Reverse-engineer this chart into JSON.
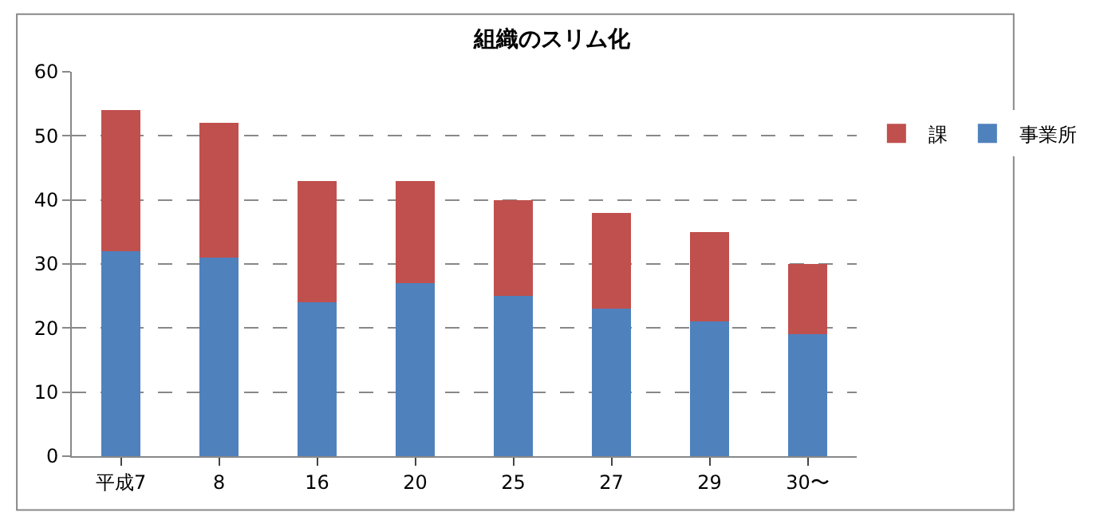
{
  "chart_data": {
    "type": "bar",
    "title": "組織のスリム化",
    "stacked": true,
    "categories": [
      "平成7",
      "8",
      "16",
      "20",
      "25",
      "27",
      "29",
      "30〜"
    ],
    "series": [
      {
        "name": "事業所",
        "color": "#4f81bd",
        "values": [
          32,
          31,
          24,
          27,
          25,
          23,
          21,
          19
        ]
      },
      {
        "name": "課",
        "color": "#c0504d",
        "values": [
          22,
          21,
          19,
          16,
          15,
          15,
          14,
          11
        ]
      }
    ],
    "ylim": [
      0,
      60
    ],
    "yticks": [
      0,
      10,
      20,
      30,
      40,
      50,
      60
    ],
    "grid": "y",
    "legend": "right"
  }
}
